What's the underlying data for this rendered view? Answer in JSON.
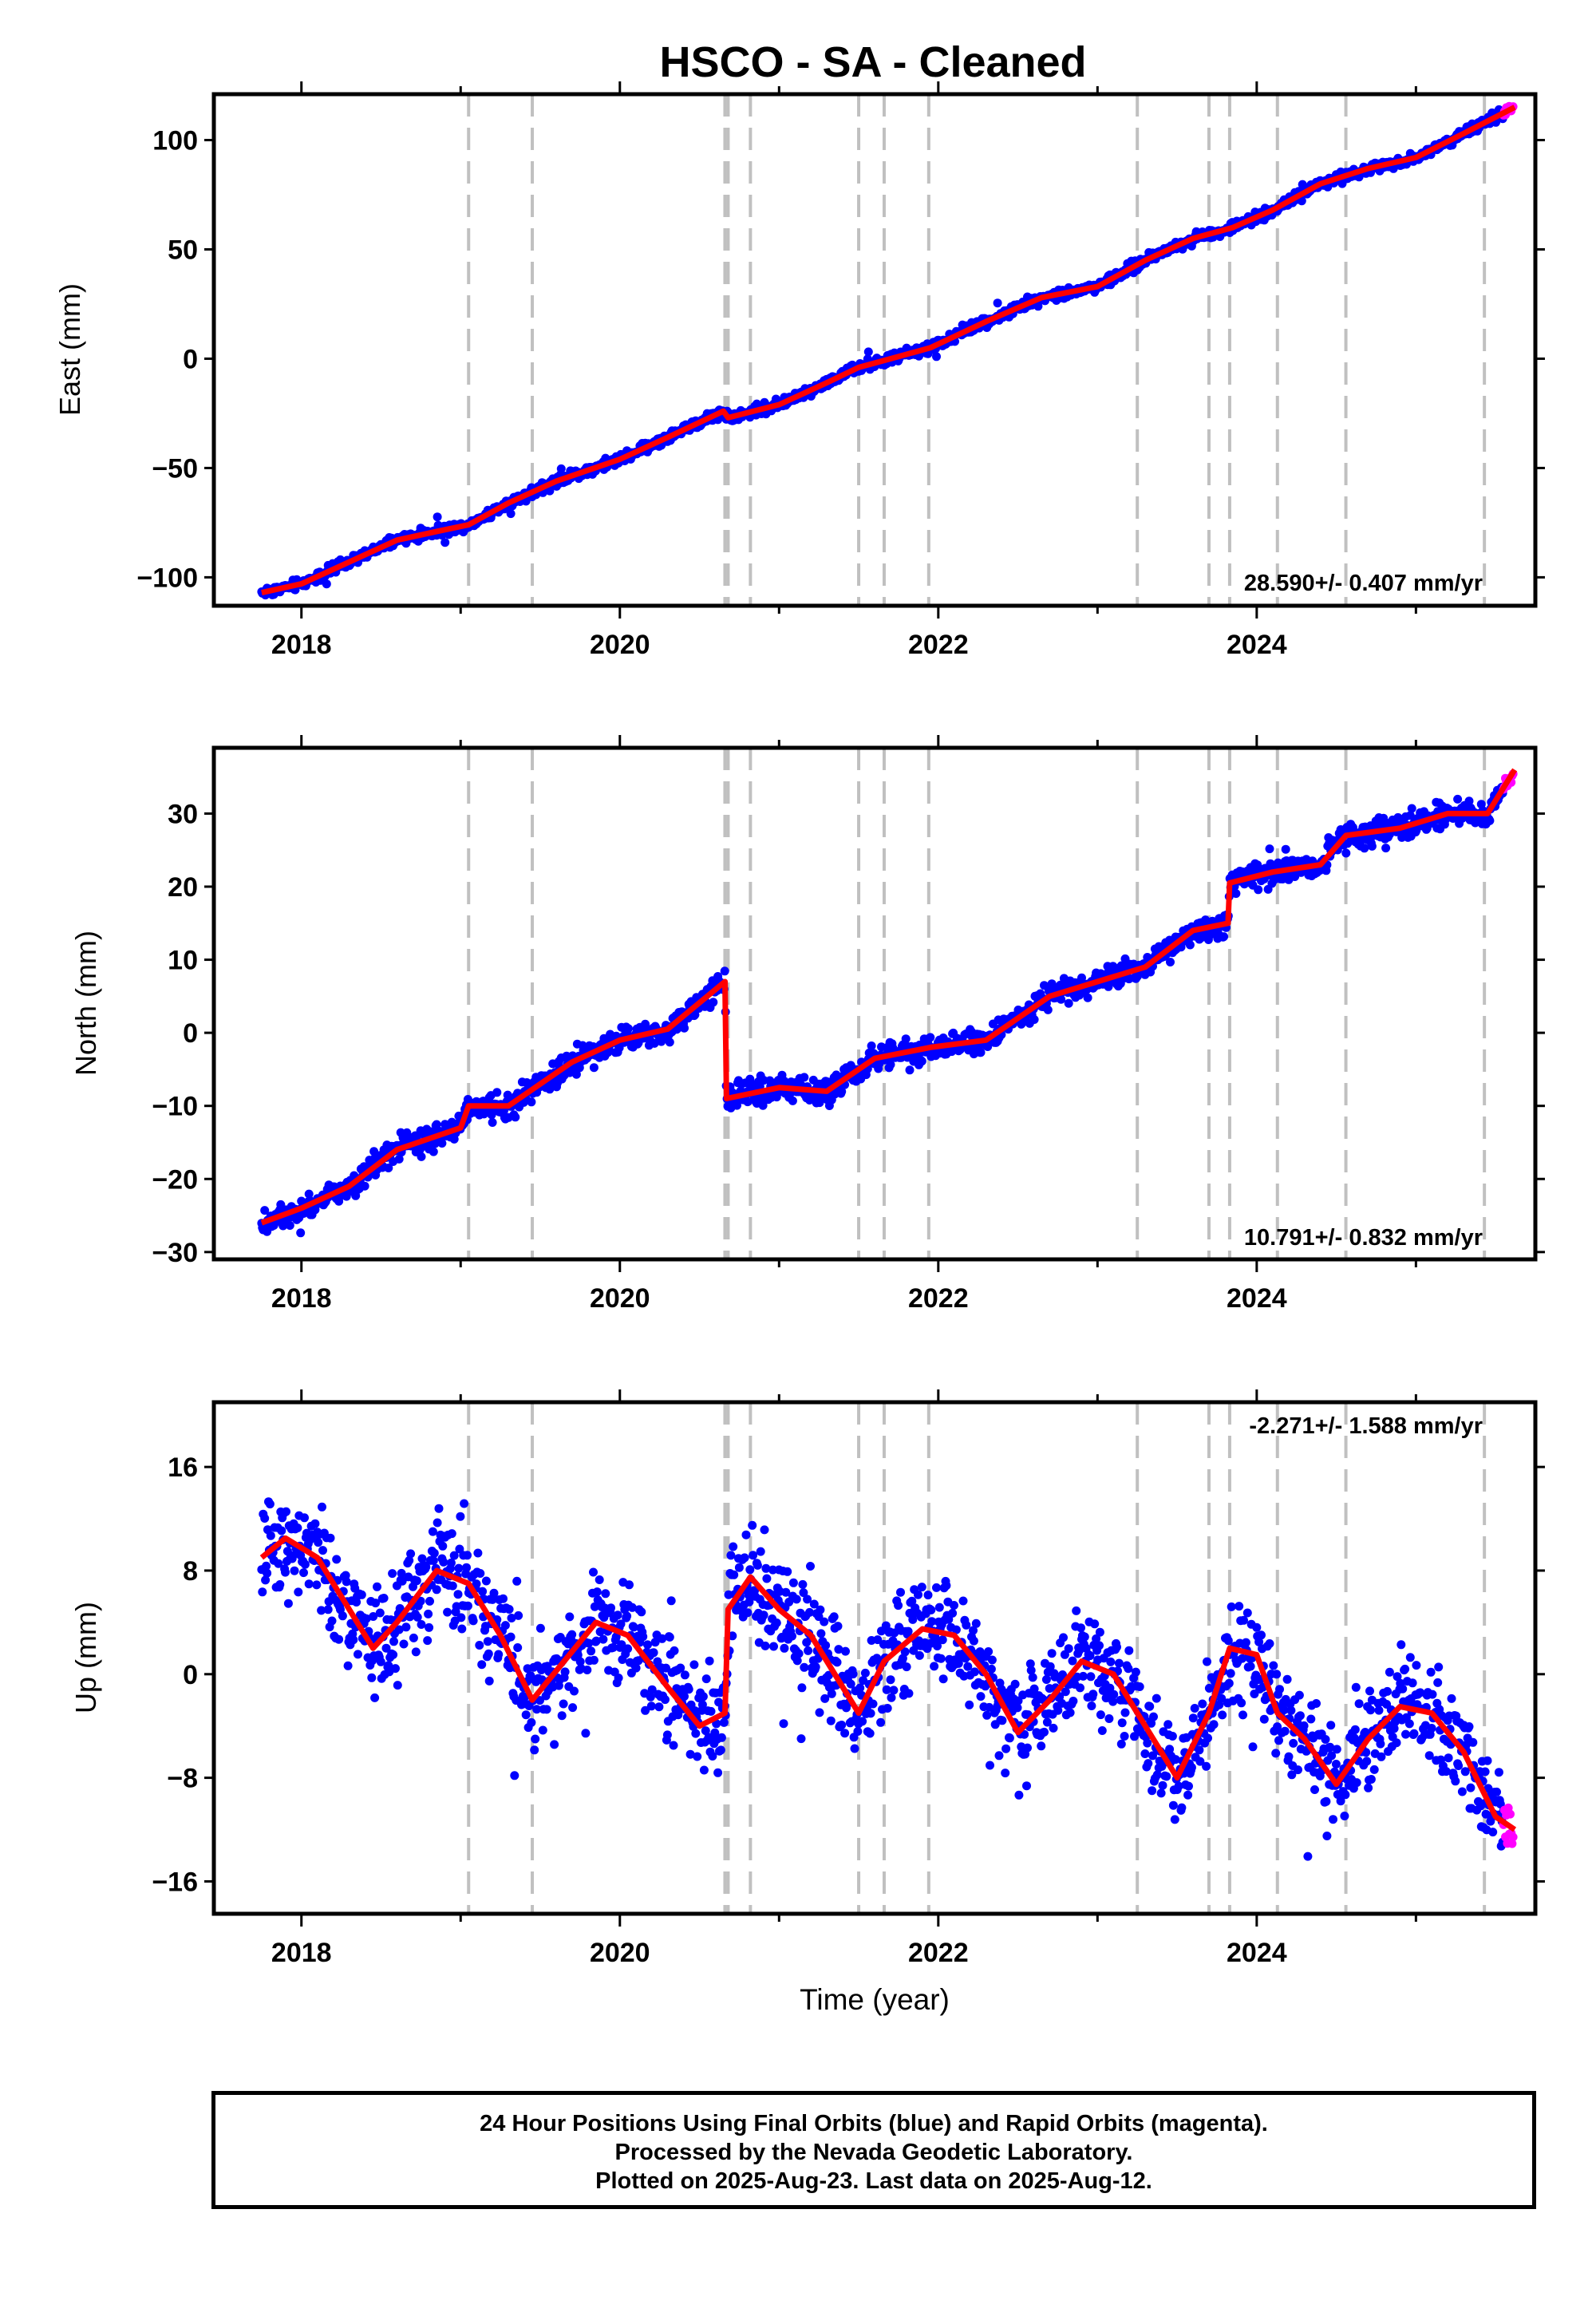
{
  "title": "HSCO  - SA - Cleaned",
  "xlabel": "Time (year)",
  "footer": {
    "line1": "24 Hour Positions Using Final Orbits (blue) and Rapid Orbits (magenta).",
    "line2": "Processed by the Nevada Geodetic Laboratory.",
    "line3": "Plotted on 2025-Aug-23. Last data on 2025-Aug-12."
  },
  "colors": {
    "final": "#0000ff",
    "rapid": "#ff00ff",
    "model": "#ff0000",
    "steps": "#c0c0c0"
  },
  "chart_data": [
    {
      "type": "scatter",
      "component": "East",
      "ylabel": "East (mm)",
      "rate_label": "28.590+/- 0.407 mm/yr",
      "xlim": [
        2017.45,
        2025.75
      ],
      "ylim": [
        -113,
        121
      ],
      "yticks": [
        -100,
        -50,
        0,
        50,
        100
      ],
      "ytick_labels": [
        "−100",
        "−50",
        "0",
        "50",
        "100"
      ],
      "xticks": [
        2018,
        2020,
        2022,
        2024
      ],
      "xtick_labels": [
        "2018",
        "2020",
        "2022",
        "2024"
      ],
      "step_epochs": [
        2019.05,
        2019.45,
        2020.66,
        2020.68,
        2020.82,
        2021.5,
        2021.66,
        2021.94,
        2023.25,
        2023.7,
        2023.83,
        2024.13,
        2024.56,
        2025.43
      ],
      "model": {
        "x": [
          2017.75,
          2018.0,
          2018.3,
          2018.6,
          2018.85,
          2019.05,
          2019.3,
          2019.6,
          2020.0,
          2020.3,
          2020.65,
          2020.68,
          2021.0,
          2021.3,
          2021.5,
          2021.7,
          2021.95,
          2022.3,
          2022.65,
          2023.0,
          2023.3,
          2023.6,
          2023.85,
          2024.1,
          2024.4,
          2024.7,
          2025.0,
          2025.3,
          2025.62
        ],
        "y": [
          -107,
          -103,
          -93,
          -83,
          -79,
          -76,
          -66,
          -56,
          -46,
          -36,
          -24,
          -27,
          -21,
          -11,
          -4,
          0,
          5,
          17,
          28,
          33,
          45,
          55,
          60,
          68,
          80,
          87,
          92,
          103,
          115
        ]
      },
      "noise": 1.8
    },
    {
      "type": "scatter",
      "component": "North",
      "ylabel": "North (mm)",
      "rate_label": "10.791+/- 0.832 mm/yr",
      "xlim": [
        2017.45,
        2025.75
      ],
      "ylim": [
        -31,
        39
      ],
      "yticks": [
        -30,
        -20,
        -10,
        0,
        10,
        20,
        30
      ],
      "ytick_labels": [
        "−30",
        "−20",
        "−10",
        "0",
        "10",
        "20",
        "30"
      ],
      "xticks": [
        2018,
        2020,
        2022,
        2024
      ],
      "xtick_labels": [
        "2018",
        "2020",
        "2022",
        "2024"
      ],
      "step_epochs": [
        2019.05,
        2019.45,
        2020.66,
        2020.68,
        2020.82,
        2021.5,
        2021.66,
        2021.94,
        2023.25,
        2023.7,
        2023.83,
        2024.13,
        2024.56,
        2025.43
      ],
      "model": {
        "x": [
          2017.75,
          2018.0,
          2018.3,
          2018.6,
          2019.0,
          2019.05,
          2019.3,
          2019.7,
          2020.0,
          2020.3,
          2020.66,
          2020.67,
          2021.0,
          2021.3,
          2021.6,
          2021.95,
          2022.3,
          2022.7,
          2023.0,
          2023.3,
          2023.6,
          2023.82,
          2023.83,
          2024.1,
          2024.4,
          2024.56,
          2024.9,
          2025.2,
          2025.45,
          2025.62
        ],
        "y": [
          -26,
          -24,
          -21,
          -16,
          -13,
          -10,
          -10,
          -4,
          -1,
          0.5,
          7,
          -9,
          -7.5,
          -8,
          -3.5,
          -2,
          -1,
          5,
          7,
          9,
          14,
          15,
          20.5,
          22,
          23,
          27,
          28,
          30,
          30,
          36
        ]
      },
      "noise": 1.3
    },
    {
      "type": "scatter",
      "component": "Up",
      "ylabel": "Up (mm)",
      "rate_label": "-2.271+/- 1.588 mm/yr",
      "xlim": [
        2017.45,
        2025.75
      ],
      "ylim": [
        -18.5,
        21
      ],
      "yticks": [
        -16,
        -8,
        0,
        8,
        16
      ],
      "ytick_labels": [
        "−16",
        "−8",
        "0",
        "8",
        "16"
      ],
      "xticks": [
        2018,
        2020,
        2022,
        2024
      ],
      "xtick_labels": [
        "2018",
        "2020",
        "2022",
        "2024"
      ],
      "step_epochs": [
        2019.05,
        2019.45,
        2020.66,
        2020.68,
        2020.82,
        2021.5,
        2021.66,
        2021.94,
        2023.25,
        2023.7,
        2023.83,
        2024.13,
        2024.56,
        2025.43
      ],
      "model": {
        "x": [
          2017.75,
          2017.9,
          2018.1,
          2018.3,
          2018.45,
          2018.6,
          2018.85,
          2019.05,
          2019.25,
          2019.45,
          2019.65,
          2019.85,
          2020.05,
          2020.3,
          2020.5,
          2020.66,
          2020.68,
          2020.82,
          2021.0,
          2021.2,
          2021.5,
          2021.66,
          2021.9,
          2022.1,
          2022.3,
          2022.5,
          2022.7,
          2022.9,
          2023.1,
          2023.25,
          2023.5,
          2023.7,
          2023.83,
          2024.0,
          2024.13,
          2024.3,
          2024.5,
          2024.7,
          2024.9,
          2025.1,
          2025.3,
          2025.5,
          2025.62
        ],
        "y": [
          9,
          10.5,
          9,
          5,
          2,
          4,
          8,
          7,
          3,
          -2,
          1,
          4,
          3,
          -1,
          -4,
          -3,
          5,
          7.5,
          5,
          3,
          -3,
          1,
          3.5,
          3,
          0,
          -4.5,
          -2,
          1,
          0,
          -3,
          -8,
          -3,
          2,
          1.5,
          -3,
          -5,
          -8.5,
          -5,
          -2.5,
          -3,
          -6,
          -11,
          -12
        ]
      },
      "noise": 3.0
    }
  ]
}
